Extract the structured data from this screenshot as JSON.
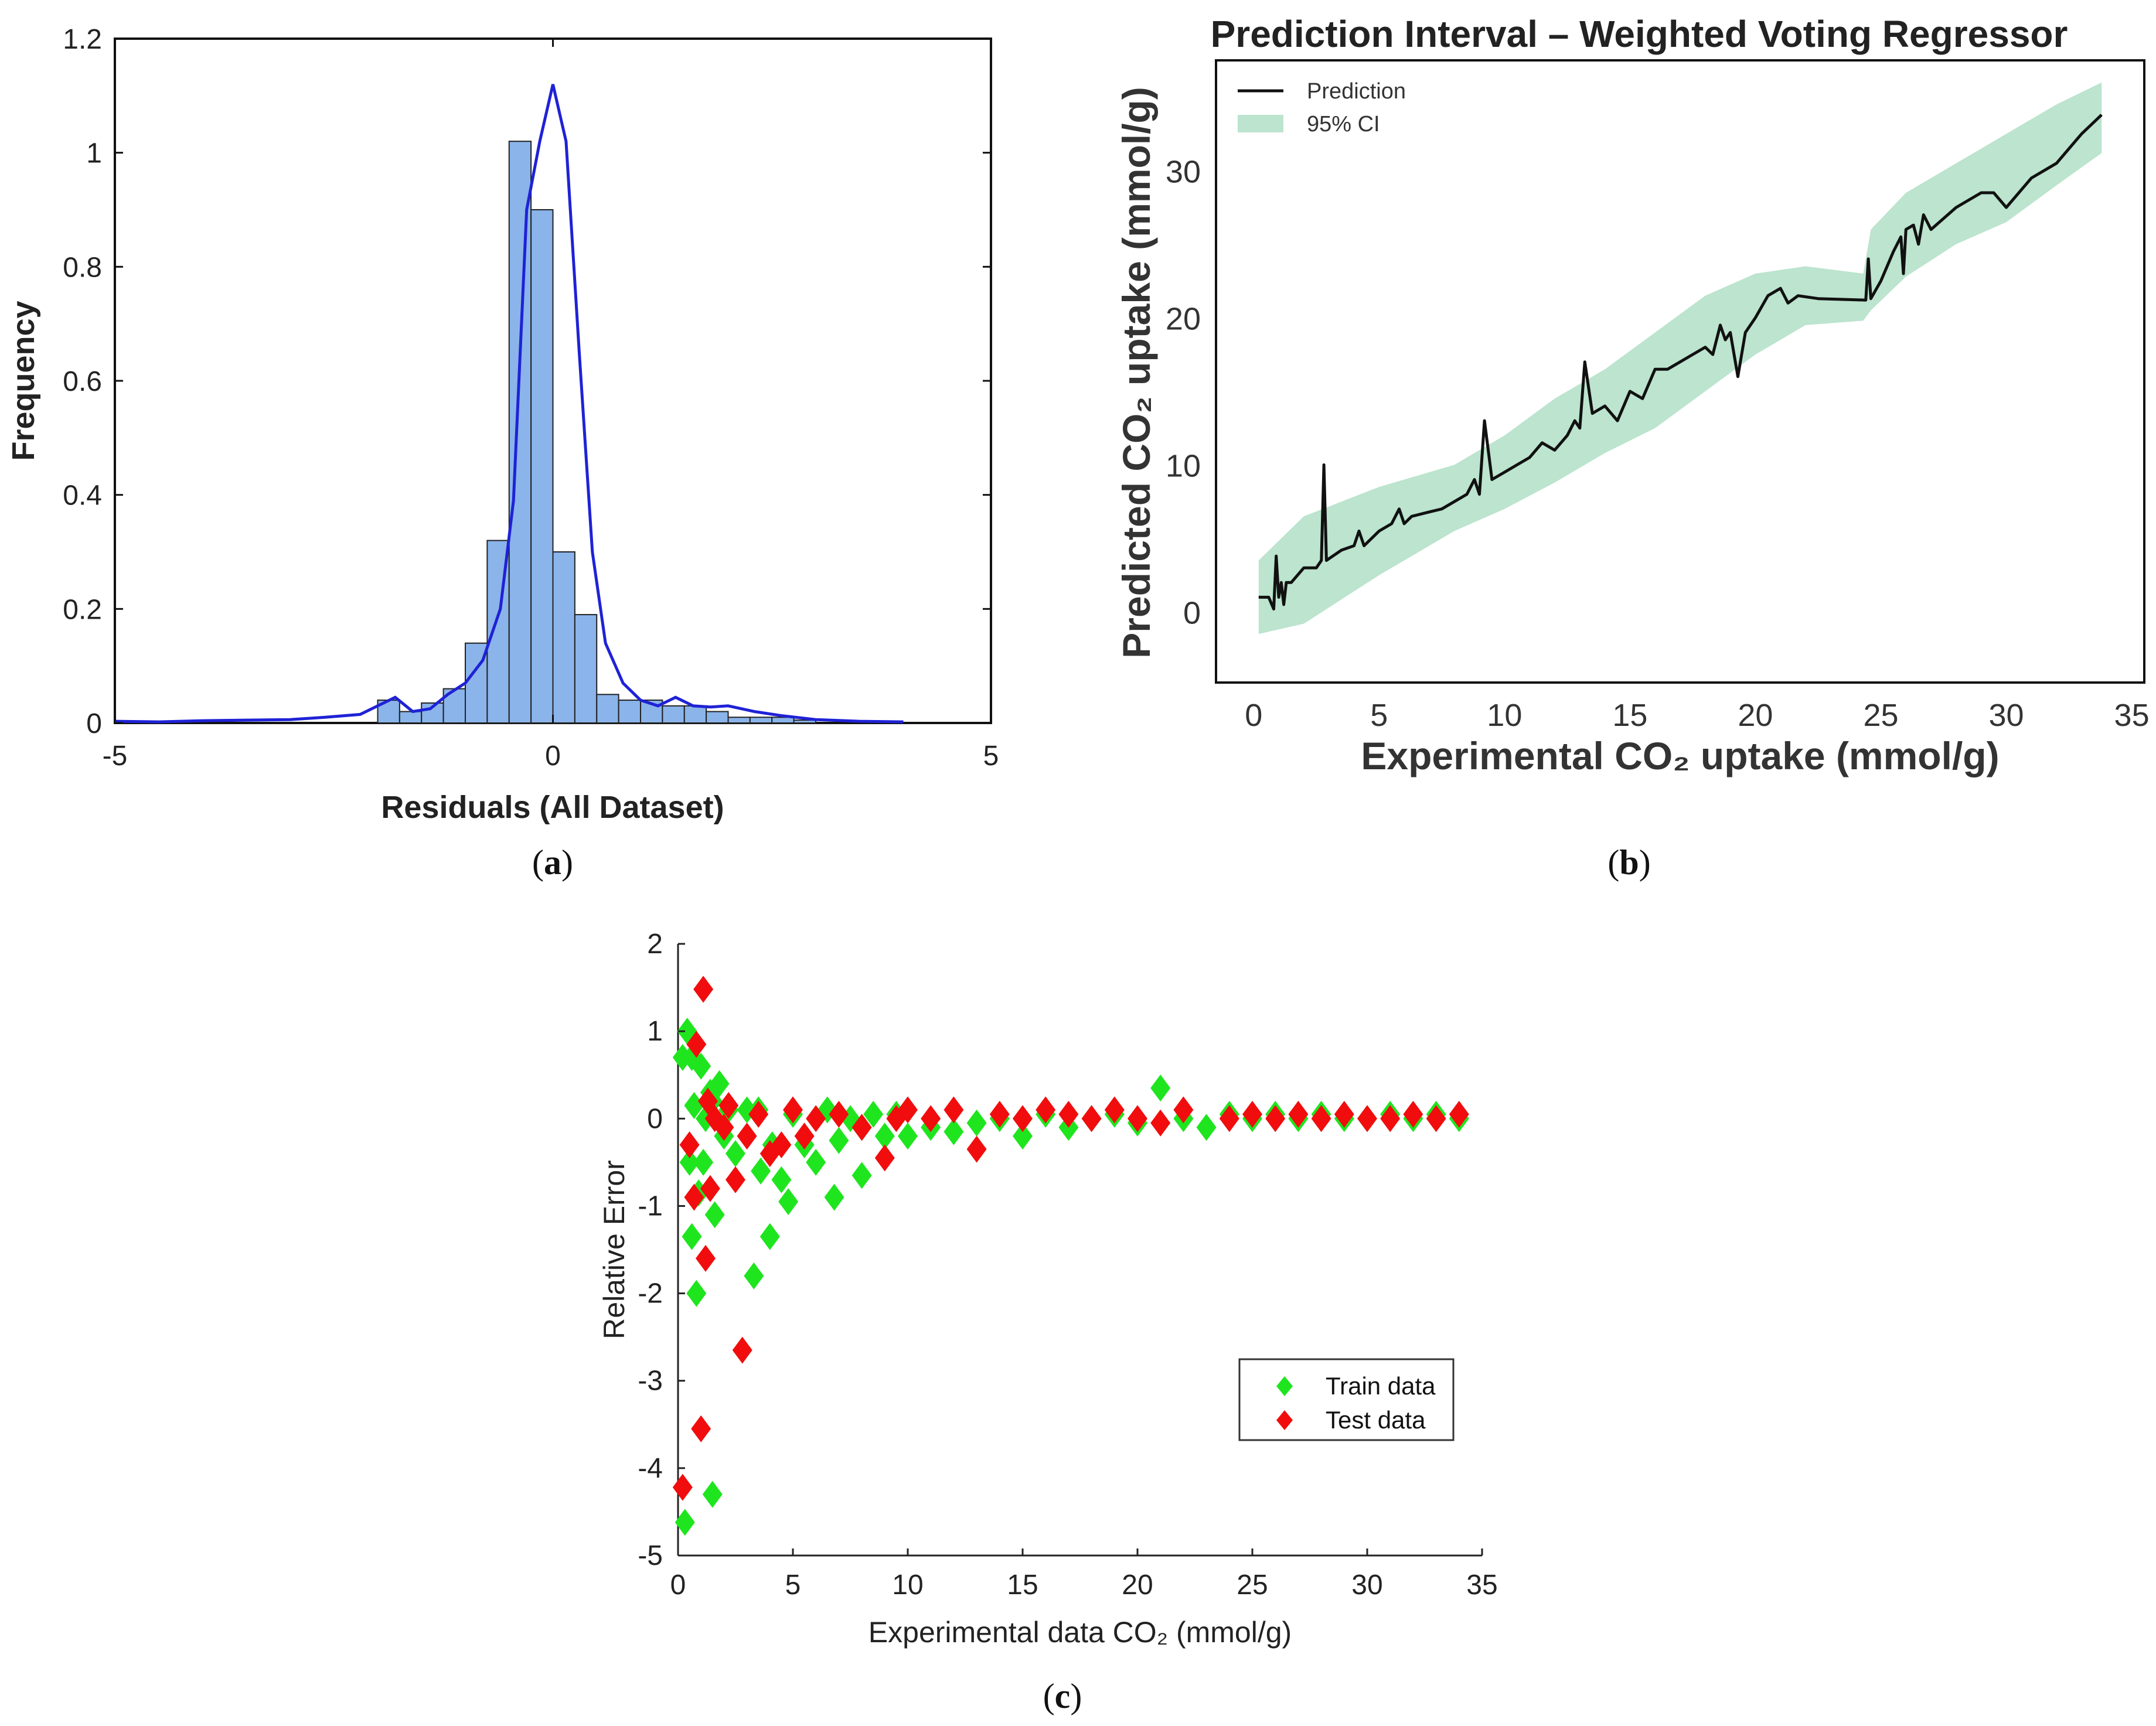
{
  "panels": {
    "a": "a",
    "b": "b",
    "c": "c"
  },
  "chart_data": [
    {
      "id": "a",
      "type": "bar",
      "title": "",
      "xlabel": "Residuals (All Dataset)",
      "ylabel": "Frequency",
      "xlim": [
        -5,
        5
      ],
      "ylim": [
        0,
        1.2
      ],
      "xticks": [
        "-5",
        "0",
        "5"
      ],
      "yticks": [
        "0",
        "0.2",
        "0.4",
        "0.6",
        "0.8",
        "1",
        "1.2"
      ],
      "bars": [
        {
          "x0": -2.0,
          "x1": -1.75,
          "value": 0.04
        },
        {
          "x0": -1.75,
          "x1": -1.5,
          "value": 0.02
        },
        {
          "x0": -1.5,
          "x1": -1.25,
          "value": 0.035
        },
        {
          "x0": -1.25,
          "x1": -1.0,
          "value": 0.06
        },
        {
          "x0": -1.0,
          "x1": -0.75,
          "value": 0.14
        },
        {
          "x0": -0.75,
          "x1": -0.5,
          "value": 0.32
        },
        {
          "x0": -0.5,
          "x1": -0.25,
          "value": 1.02
        },
        {
          "x0": -0.25,
          "x1": 0.0,
          "value": 0.9
        },
        {
          "x0": 0.0,
          "x1": 0.25,
          "value": 0.3
        },
        {
          "x0": 0.25,
          "x1": 0.5,
          "value": 0.19
        },
        {
          "x0": 0.5,
          "x1": 0.75,
          "value": 0.05
        },
        {
          "x0": 0.75,
          "x1": 1.0,
          "value": 0.04
        },
        {
          "x0": 1.0,
          "x1": 1.25,
          "value": 0.04
        },
        {
          "x0": 1.25,
          "x1": 1.5,
          "value": 0.03
        },
        {
          "x0": 1.5,
          "x1": 1.75,
          "value": 0.03
        },
        {
          "x0": 1.75,
          "x1": 2.0,
          "value": 0.02
        },
        {
          "x0": 2.0,
          "x1": 2.25,
          "value": 0.01
        },
        {
          "x0": 2.25,
          "x1": 2.5,
          "value": 0.01
        },
        {
          "x0": 2.5,
          "x1": 2.75,
          "value": 0.01
        },
        {
          "x0": 2.75,
          "x1": 3.0,
          "value": 0.005
        }
      ],
      "kde": {
        "name": "density",
        "x": [
          -5,
          -4.5,
          -4,
          -3.5,
          -3,
          -2.6,
          -2.2,
          -2.0,
          -1.8,
          -1.6,
          -1.4,
          -1.2,
          -1.0,
          -0.8,
          -0.6,
          -0.45,
          -0.3,
          -0.15,
          0.0,
          0.15,
          0.3,
          0.45,
          0.6,
          0.8,
          1.0,
          1.2,
          1.4,
          1.6,
          1.8,
          2.0,
          2.3,
          2.6,
          3.0,
          3.5,
          4.0
        ],
        "y": [
          0.003,
          0.002,
          0.004,
          0.005,
          0.006,
          0.01,
          0.015,
          0.03,
          0.045,
          0.02,
          0.025,
          0.05,
          0.07,
          0.11,
          0.2,
          0.39,
          0.9,
          1.02,
          1.12,
          1.02,
          0.65,
          0.3,
          0.14,
          0.07,
          0.04,
          0.03,
          0.045,
          0.03,
          0.028,
          0.03,
          0.02,
          0.013,
          0.006,
          0.003,
          0.002
        ]
      },
      "colors": {
        "bar": "#8ab4ea",
        "line": "#1f22d6"
      }
    },
    {
      "id": "b",
      "type": "line",
      "title": "Prediction Interval – Weighted Voting Regressor",
      "xlabel": "Experimental CO₂ uptake (mmol/g)",
      "ylabel": "Predicted CO₂ uptake (mmol/g)",
      "xlim": [
        -1.5,
        35.5
      ],
      "ylim": [
        -4.8,
        37.5
      ],
      "xticks": [
        "0",
        "5",
        "10",
        "15",
        "20",
        "25",
        "30",
        "35"
      ],
      "yticks": [
        "0",
        "10",
        "20",
        "30"
      ],
      "legend": [
        "Prediction",
        "95% CI"
      ],
      "series": [
        {
          "name": "Prediction",
          "x": [
            0.2,
            0.6,
            0.8,
            0.9,
            1.0,
            1.1,
            1.2,
            1.3,
            1.5,
            2.0,
            2.5,
            2.7,
            2.8,
            2.9,
            3.5,
            4.0,
            4.2,
            4.4,
            5.0,
            5.5,
            5.8,
            6.0,
            6.3,
            7.0,
            7.5,
            8.0,
            8.5,
            8.8,
            9.0,
            9.2,
            9.5,
            10.0,
            10.5,
            11.0,
            11.5,
            12.0,
            12.5,
            12.8,
            13.0,
            13.2,
            13.5,
            14.0,
            14.5,
            15.0,
            15.5,
            16.0,
            16.5,
            17.0,
            17.5,
            18.0,
            18.3,
            18.6,
            18.8,
            19.0,
            19.3,
            19.6,
            20.0,
            20.5,
            21.0,
            21.3,
            21.7,
            22.5,
            24.4,
            24.5,
            24.6,
            25.0,
            25.5,
            25.8,
            25.9,
            26.0,
            26.3,
            26.5,
            26.7,
            27.0,
            28.0,
            29.0,
            29.5,
            30.0,
            31.0,
            32.0,
            33.0,
            33.8
          ],
          "y": [
            1.0,
            1.0,
            0.2,
            3.8,
            1.0,
            2.0,
            0.5,
            2.0,
            2.0,
            3.0,
            3.0,
            3.5,
            10.0,
            3.5,
            4.2,
            4.5,
            5.5,
            4.5,
            5.5,
            6.0,
            7.0,
            6.0,
            6.5,
            6.8,
            7.0,
            7.5,
            8.0,
            9.0,
            8.0,
            13.0,
            9.0,
            9.5,
            10.0,
            10.5,
            11.5,
            11.0,
            12.0,
            13.0,
            12.5,
            17.0,
            13.5,
            14.0,
            13.0,
            15.0,
            14.5,
            16.5,
            16.5,
            17.0,
            17.5,
            18.0,
            17.5,
            19.5,
            18.5,
            19.0,
            16.0,
            19.0,
            20.0,
            21.5,
            22.0,
            21.0,
            21.5,
            21.3,
            21.2,
            24.0,
            21.3,
            22.5,
            24.5,
            25.5,
            23.0,
            26.0,
            26.3,
            25.0,
            27.0,
            26.0,
            27.5,
            28.5,
            28.5,
            27.5,
            29.5,
            30.5,
            32.5,
            33.8
          ]
        }
      ],
      "ci": {
        "name": "95% CI",
        "x": [
          0.2,
          2,
          5,
          8,
          10,
          12,
          14,
          16,
          18,
          20,
          22,
          24.3,
          24.6,
          26,
          28,
          30,
          32,
          33.8
        ],
        "lower": [
          -1.5,
          -0.8,
          2.5,
          5.5,
          7.0,
          8.8,
          10.8,
          12.5,
          15.0,
          17.5,
          19.5,
          19.8,
          20.5,
          22.8,
          25.0,
          26.5,
          29.0,
          31.2
        ],
        "upper": [
          3.5,
          6.5,
          8.5,
          10.0,
          12.0,
          14.5,
          16.5,
          19.0,
          21.5,
          23.0,
          23.5,
          23.0,
          26.0,
          28.5,
          30.5,
          32.5,
          34.5,
          36.0
        ]
      },
      "colors": {
        "line": "#111111",
        "band": "#8fd2ae"
      }
    },
    {
      "id": "c",
      "type": "scatter",
      "title": "",
      "xlabel": "Experimental data CO₂ (mmol/g)",
      "ylabel": "Relative Error",
      "xlim": [
        0,
        35
      ],
      "ylim": [
        -5,
        2
      ],
      "xticks": [
        "0",
        "5",
        "10",
        "15",
        "20",
        "25",
        "30",
        "35"
      ],
      "yticks": [
        "-5",
        "-4",
        "-3",
        "-2",
        "-1",
        "0",
        "1",
        "2"
      ],
      "legend": [
        "Train data",
        "Test data"
      ],
      "series": [
        {
          "name": "Train data",
          "color": "#1fe51f",
          "x": [
            0.3,
            0.4,
            0.6,
            0.6,
            0.7,
            0.8,
            0.9,
            1.0,
            1.1,
            1.2,
            1.4,
            1.5,
            1.6,
            1.8,
            2.0,
            2.2,
            2.5,
            3.0,
            3.3,
            3.6,
            4.0,
            4.1,
            4.5,
            4.8,
            5.0,
            5.5,
            6.0,
            6.5,
            7.0,
            7.5,
            8.0,
            8.5,
            9.0,
            9.5,
            10.0,
            11.0,
            12.0,
            13.0,
            14.0,
            15.0,
            16.0,
            17.0,
            18.0,
            19.0,
            20.0,
            21.0,
            22.0,
            23.0,
            24.0,
            25.0,
            26.0,
            27.0,
            28.0,
            29.0,
            30.0,
            31.0,
            32.0,
            33.0,
            34.0,
            0.5,
            1.5,
            3.5,
            6.8,
            8.0,
            0.2
          ],
          "y": [
            -4.62,
            1.0,
            0.7,
            -1.35,
            0.15,
            -2.0,
            -0.85,
            0.6,
            -0.5,
            0.0,
            0.3,
            -4.3,
            -1.1,
            0.4,
            -0.2,
            0.1,
            -0.4,
            0.1,
            -1.8,
            -0.6,
            -1.35,
            -0.3,
            -0.7,
            -0.95,
            0.05,
            -0.3,
            -0.5,
            0.1,
            -0.25,
            0.0,
            -0.65,
            0.05,
            -0.2,
            0.05,
            -0.2,
            -0.1,
            -0.15,
            -0.05,
            0.0,
            -0.2,
            0.05,
            -0.1,
            0.0,
            0.05,
            -0.05,
            0.35,
            0.0,
            -0.1,
            0.05,
            0.0,
            0.05,
            0.0,
            0.05,
            0.0,
            0.0,
            0.05,
            0.0,
            0.05,
            0.0,
            -0.5,
            0.2,
            0.1,
            -0.9,
            -0.1,
            0.7
          ]
        },
        {
          "name": "Test data",
          "color": "#f10d0d",
          "x": [
            0.2,
            0.5,
            0.8,
            1.0,
            1.1,
            1.2,
            1.4,
            1.6,
            2.0,
            2.5,
            2.8,
            3.0,
            3.5,
            4.0,
            4.5,
            5.0,
            5.5,
            6.0,
            7.0,
            8.0,
            9.0,
            10.0,
            11.0,
            12.0,
            13.0,
            14.0,
            15.0,
            16.0,
            17.0,
            18.0,
            19.0,
            20.0,
            21.0,
            22.0,
            24.0,
            25.0,
            26.0,
            27.0,
            28.0,
            29.0,
            30.0,
            31.0,
            32.0,
            33.0,
            34.0,
            0.7,
            1.3,
            9.5,
            2.2
          ],
          "y": [
            -4.22,
            -0.3,
            0.85,
            -3.55,
            1.48,
            -1.6,
            -0.8,
            0.0,
            -0.1,
            -0.7,
            -2.65,
            -0.2,
            0.05,
            -0.4,
            -0.3,
            0.1,
            -0.2,
            0.0,
            0.05,
            -0.1,
            -0.45,
            0.1,
            0.0,
            0.1,
            -0.35,
            0.05,
            0.0,
            0.1,
            0.05,
            0.0,
            0.1,
            0.0,
            -0.05,
            0.1,
            0.0,
            0.05,
            0.0,
            0.05,
            0.0,
            0.05,
            0.0,
            0.0,
            0.05,
            0.0,
            0.05,
            -0.9,
            0.2,
            0.0,
            0.15
          ]
        }
      ]
    }
  ]
}
